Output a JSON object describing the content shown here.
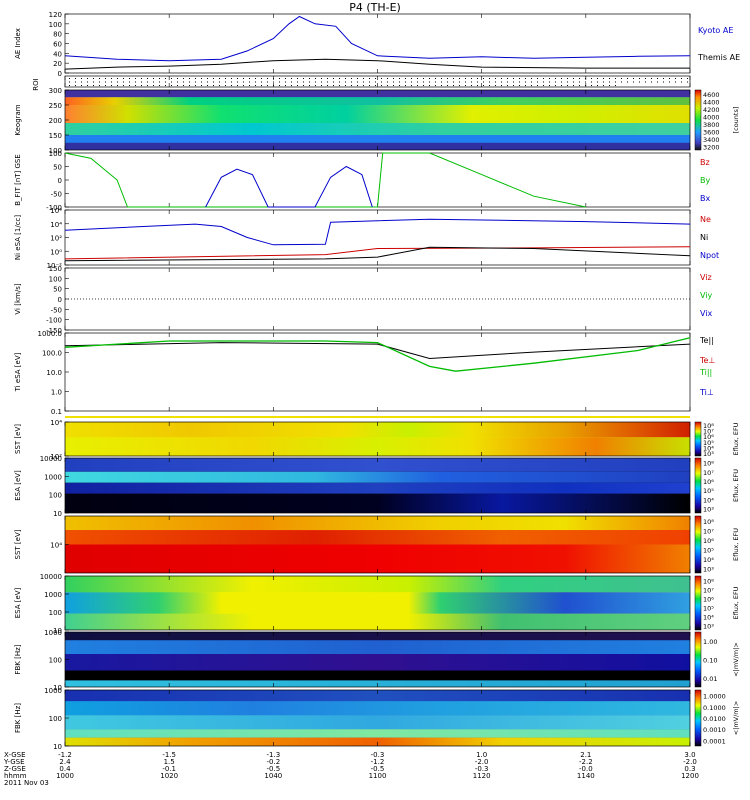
{
  "title": "P4 (TH-E)",
  "colors": {
    "kyoto": "#0000cc",
    "themis": "#000000",
    "red": "#cc0000",
    "green": "#00bb00",
    "blue": "#0000cc"
  },
  "bottom_axis": {
    "row_labels": [
      "X-GSE",
      "Y-GSE",
      "Z-GSE",
      "hhmm",
      "2011 Nov 03"
    ],
    "columns": [
      {
        "x": "-1.2",
        "y": "2.4",
        "z": "0.4",
        "t": "1000"
      },
      {
        "x": "-1.5",
        "y": "1.5",
        "z": "-0.1",
        "t": "1020"
      },
      {
        "x": "-1.3",
        "y": "-0.2",
        "z": "-0.5",
        "t": "1040"
      },
      {
        "x": "-0.3",
        "y": "-1.2",
        "z": "-0.5",
        "t": "1100"
      },
      {
        "x": "1.0",
        "y": "-2.0",
        "z": "-0.3",
        "t": "1120"
      },
      {
        "x": "2.1",
        "y": "-2.2",
        "z": "-0.0",
        "t": "1140"
      },
      {
        "x": "3.0",
        "y": "-2.0",
        "z": "0.3",
        "t": "1200"
      }
    ]
  },
  "chart_data": [
    {
      "type": "line",
      "ylabel": "AE Index",
      "ylim": [
        0,
        120
      ],
      "yticks": [
        "0",
        "20",
        "40",
        "60",
        "80",
        "100",
        "120"
      ],
      "series": [
        {
          "name": "Kyoto AE",
          "x": [
            1000,
            1010,
            1020,
            1030,
            1035,
            1040,
            1043,
            1045,
            1048,
            1052,
            1055,
            1100,
            1110,
            1120,
            1130,
            1140,
            1150,
            1200
          ],
          "values": [
            35,
            28,
            25,
            28,
            45,
            70,
            100,
            115,
            100,
            95,
            60,
            35,
            30,
            33,
            30,
            32,
            34,
            35
          ]
        },
        {
          "name": "Themis AE",
          "x": [
            1000,
            1010,
            1020,
            1030,
            1040,
            1050,
            1100,
            1110,
            1120,
            1140,
            1200
          ],
          "values": [
            8,
            12,
            14,
            18,
            25,
            28,
            25,
            18,
            12,
            10,
            10
          ]
        }
      ]
    },
    {
      "type": "heatmap",
      "ylabel": "ROI",
      "yticks": []
    },
    {
      "type": "heatmap",
      "ylabel": "Keogram",
      "ylim": [
        100,
        300
      ],
      "yticks": [
        "100",
        "150",
        "200",
        "250",
        "300"
      ],
      "colorbar_label": "[counts]",
      "colorbar_ticks": [
        "3200",
        "3400",
        "3600",
        "3800",
        "4000",
        "4200",
        "4400",
        "4600"
      ]
    },
    {
      "type": "line",
      "ylabel": "B_FIT [nT] GSE",
      "ylim": [
        -100,
        100
      ],
      "yticks": [
        "-100",
        "-50",
        "0",
        "50",
        "100"
      ],
      "series": [
        {
          "name": "Bz",
          "x": [],
          "values": []
        },
        {
          "name": "By",
          "x": [
            1000,
            1005,
            1010,
            1012,
            1100,
            1101,
            1110,
            1120,
            1130,
            1140
          ],
          "values": [
            100,
            80,
            0,
            -100,
            -100,
            100,
            100,
            20,
            -60,
            -100
          ]
        },
        {
          "name": "Bx",
          "x": [
            1027,
            1030,
            1033,
            1036,
            1039,
            1048,
            1051,
            1054,
            1057,
            1059
          ],
          "values": [
            -100,
            10,
            40,
            20,
            -100,
            -100,
            10,
            50,
            20,
            -100
          ]
        }
      ]
    },
    {
      "type": "line",
      "ylabel": "Ni eSA [1/cc]",
      "yticks": [
        "10⁻²",
        "10⁰",
        "10²",
        "10⁴",
        "10⁶"
      ],
      "series": [
        {
          "name": "Ne",
          "x": [
            1000,
            1050,
            1100,
            1130,
            1200
          ],
          "values": [
            -1.5,
            -0.8,
            0.2,
            0.3,
            0.5
          ]
        },
        {
          "name": "Ni",
          "x": [
            1000,
            1025,
            1030,
            1035,
            1040,
            1050,
            1051,
            1110,
            1140,
            1200
          ],
          "values": [
            3.2,
            4.2,
            3.8,
            2.0,
            0.8,
            0.9,
            4.5,
            5.0,
            4.6,
            4.2
          ]
        },
        {
          "name": "Npot",
          "x": [
            1000,
            1050,
            1100,
            1110,
            1130,
            1200
          ],
          "values": [
            -1.8,
            -1.5,
            -1.2,
            0.4,
            0.2,
            -1.0
          ]
        }
      ]
    },
    {
      "type": "line",
      "ylabel": "Vi [km/s]",
      "ylim": [
        -200,
        200
      ],
      "yticks": [
        "-150",
        "-100",
        "-50",
        "0",
        "50",
        "100",
        "150"
      ],
      "series": [
        {
          "name": "Viz",
          "x": [],
          "values": []
        },
        {
          "name": "Viy",
          "x": [],
          "values": []
        },
        {
          "name": "Vix",
          "x": [],
          "values": []
        }
      ]
    },
    {
      "type": "line",
      "ylabel": "Ti eSA [eV]",
      "yticks": [
        "0.1",
        "1.0",
        "10.0",
        "100.0",
        "1000.0"
      ],
      "series": [
        {
          "name": "Te||",
          "x": [
            1000,
            1030,
            1100,
            1110,
            1130,
            1200
          ],
          "values": [
            2.8,
            3.0,
            2.9,
            2.0,
            2.4,
            2.9
          ]
        },
        {
          "name": "Te⊥",
          "x": [],
          "values": []
        },
        {
          "name": "Ti||",
          "x": [
            1000,
            1020,
            1050,
            1100,
            1110,
            1115,
            1130,
            1150,
            1200
          ],
          "values": [
            2.7,
            3.1,
            3.1,
            3.0,
            1.5,
            1.2,
            1.7,
            2.5,
            3.3
          ]
        },
        {
          "name": "Ti⊥",
          "x": [],
          "values": []
        }
      ]
    },
    {
      "type": "heatmap",
      "ylabel": "SST [eV]",
      "yticks": [
        "10²",
        "10⁴"
      ],
      "colorbar_label": "Eflux, EFU",
      "colorbar_ticks": [
        "10³",
        "10⁴",
        "10⁵",
        "10⁶",
        "10⁷",
        "10⁸"
      ]
    },
    {
      "type": "heatmap",
      "ylabel": "ESA [eV]",
      "yticks": [
        "10",
        "100",
        "1000",
        "10000"
      ],
      "colorbar_label": "Eflux, EFU",
      "colorbar_ticks": [
        "10³",
        "10⁴",
        "10⁵",
        "10⁶",
        "10⁷",
        "10⁸"
      ]
    },
    {
      "type": "heatmap",
      "ylabel": "SST [eV]",
      "yticks": [
        "10⁴"
      ],
      "colorbar_label": "Eflux, EFU",
      "colorbar_ticks": [
        "10³",
        "10⁴",
        "10⁵",
        "10⁶",
        "10⁷",
        "10⁸"
      ]
    },
    {
      "type": "heatmap",
      "ylabel": "ESA [eV]",
      "yticks": [
        "10",
        "100",
        "1000",
        "10000"
      ],
      "colorbar_label": "Eflux, EFU",
      "colorbar_ticks": [
        "10³",
        "10⁴",
        "10⁵",
        "10⁶",
        "10⁷",
        "10⁸"
      ]
    },
    {
      "type": "heatmap",
      "ylabel": "FBK [Hz]",
      "yticks": [
        "10",
        "100",
        "1000"
      ],
      "colorbar_label": "<|mV/m|>",
      "colorbar_ticks": [
        "0.01",
        "0.10",
        "1.00"
      ]
    },
    {
      "type": "heatmap",
      "ylabel": "FBK [Hz]",
      "yticks": [
        "10",
        "100",
        "1000"
      ],
      "colorbar_label": "<|mV/m|>",
      "colorbar_ticks": [
        "0.0001",
        "0.0010",
        "0.0100",
        "0.1000",
        "1.0000"
      ]
    }
  ]
}
